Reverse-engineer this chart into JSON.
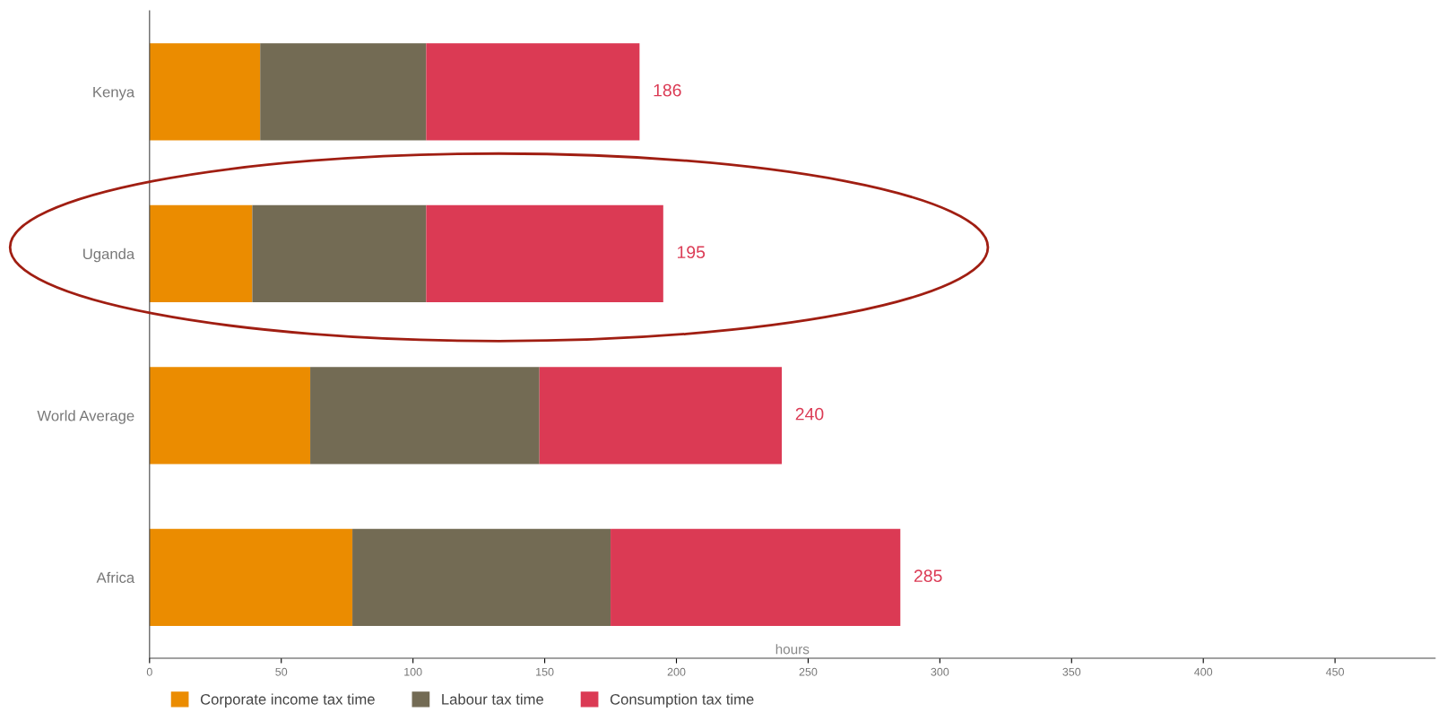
{
  "chart_data": {
    "type": "bar",
    "orientation": "horizontal",
    "stacked": true,
    "categories": [
      "Kenya",
      "Uganda",
      "World Average",
      "Africa"
    ],
    "series": [
      {
        "name": "Corporate income tax time",
        "color": "#eb8c00",
        "values": [
          42,
          39,
          61,
          77
        ]
      },
      {
        "name": "Labour tax time",
        "color": "#736b54",
        "values": [
          63,
          66,
          87,
          98
        ]
      },
      {
        "name": "Consumption tax time",
        "color": "#db3a54",
        "values": [
          81,
          90,
          92,
          110
        ]
      }
    ],
    "totals": [
      "186",
      "195",
      "240",
      "285"
    ],
    "xlabel": "hours",
    "xlim": [
      0,
      488
    ],
    "xticks": [
      0,
      50,
      100,
      150,
      200,
      250,
      300,
      350,
      400,
      450
    ],
    "grid": false,
    "legend": "bottom"
  }
}
